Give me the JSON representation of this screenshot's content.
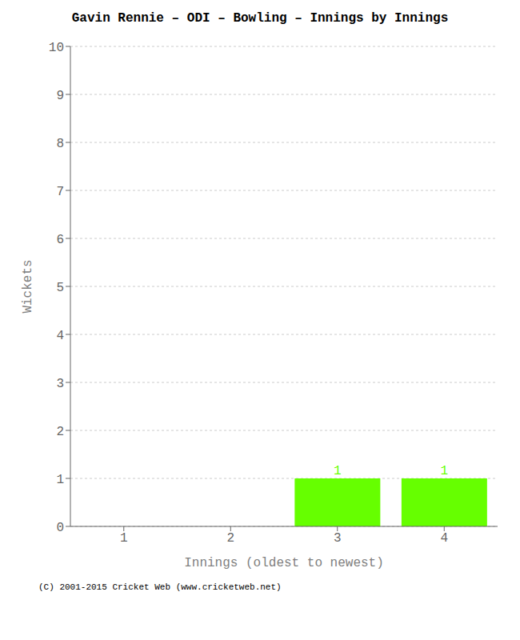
{
  "chart_data": {
    "type": "bar",
    "title": "Gavin Rennie – ODI – Bowling – Innings by Innings",
    "xlabel": "Innings (oldest to newest)",
    "ylabel": "Wickets",
    "categories": [
      1,
      2,
      3,
      4
    ],
    "values": [
      0,
      0,
      1,
      1
    ],
    "colors": [
      "#ffffff",
      "#ffffff",
      "#66ff00",
      "#66ff00"
    ],
    "ylim": [
      0,
      10
    ],
    "yticks": [
      0,
      1,
      2,
      3,
      4,
      5,
      6,
      7,
      8,
      9,
      10
    ],
    "grid": true,
    "data_labels": true,
    "annotations": [
      "(C) 2001-2015 Cricket Web (www.cricketweb.net)"
    ]
  }
}
